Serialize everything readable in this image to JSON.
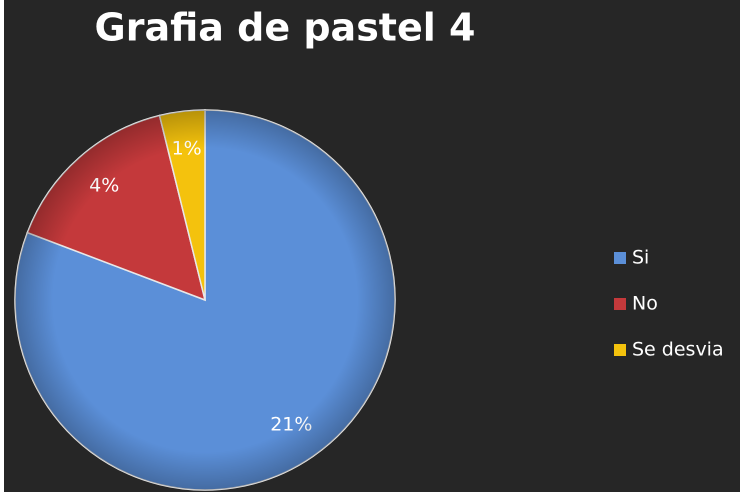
{
  "chart_data": {
    "type": "pie",
    "title": "Grafia de pastel 4",
    "categories": [
      "Si",
      "No",
      "Se desvia"
    ],
    "values": [
      21,
      4,
      1
    ],
    "value_labels": [
      "21%",
      "4%",
      "1%"
    ],
    "colors": [
      "#5b8fd8",
      "#c4393b",
      "#f4c20d"
    ],
    "legend": "right"
  }
}
